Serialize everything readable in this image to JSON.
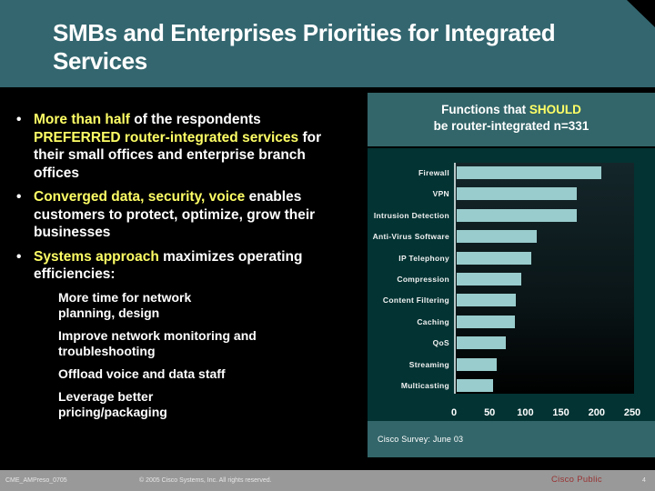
{
  "slide": {
    "title": "SMBs and Enterprises Priorities for Integrated Services",
    "bullets": [
      {
        "parts": [
          {
            "text": "More than half",
            "highlight": true
          },
          {
            "text": " of the respondents ",
            "highlight": false
          },
          {
            "text": "PREFERRED router-integrated services",
            "highlight": true
          },
          {
            "text": " for their small offices and enterprise branch offices",
            "highlight": false
          }
        ]
      },
      {
        "parts": [
          {
            "text": "Converged data, security, voice",
            "highlight": true
          },
          {
            "text": " enables customers to protect, optimize, grow their businesses",
            "highlight": false
          }
        ]
      },
      {
        "parts": [
          {
            "text": "Systems approach",
            "highlight": true
          },
          {
            "text": " maximizes operating efficiencies:",
            "highlight": false
          }
        ],
        "sub_items": [
          "More time for network planning, design",
          "Improve network monitoring and troubleshooting",
          "Offload voice and data staff",
          "Leverage better pricing/packaging"
        ]
      }
    ],
    "bullet_glyph": "•"
  },
  "chart_header": {
    "line1_prefix": "Functions that ",
    "line1_highlight": "SHOULD",
    "line2": "be router-integrated n=331"
  },
  "chart_source": "Cisco Survey:  June 03",
  "chart_data": {
    "type": "bar",
    "orientation": "horizontal",
    "title": "Functions that SHOULD be router-integrated n=331",
    "categories": [
      "Firewall",
      "VPN",
      "Intrusion Detection",
      "Anti-Virus Software",
      "IP Telephony",
      "Compression",
      "Content Filtering",
      "Caching",
      "QoS",
      "Streaming",
      "Multicasting"
    ],
    "values": [
      203,
      168,
      168,
      112,
      104,
      90,
      83,
      81,
      69,
      56,
      51
    ],
    "xlabel": "",
    "ylabel": "",
    "xlim": [
      0,
      250
    ],
    "x_ticks": [
      0,
      50,
      100,
      150,
      200,
      250
    ],
    "grid": false,
    "legend": null,
    "bar_color": "#99cccc",
    "source": "Cisco Survey: June 03"
  },
  "footer": {
    "doc_id": "CME_AMPreso_0705",
    "copyright": "© 2005 Cisco Systems, Inc. All rights reserved.",
    "classification": "Cisco Public",
    "page_number": "4"
  },
  "colors": {
    "title_band": "#33666f",
    "highlight": "#ffff66",
    "chart_body": "#033333",
    "bar": "#99cccc",
    "classification": "#993333",
    "footer_bg": "#999999"
  }
}
